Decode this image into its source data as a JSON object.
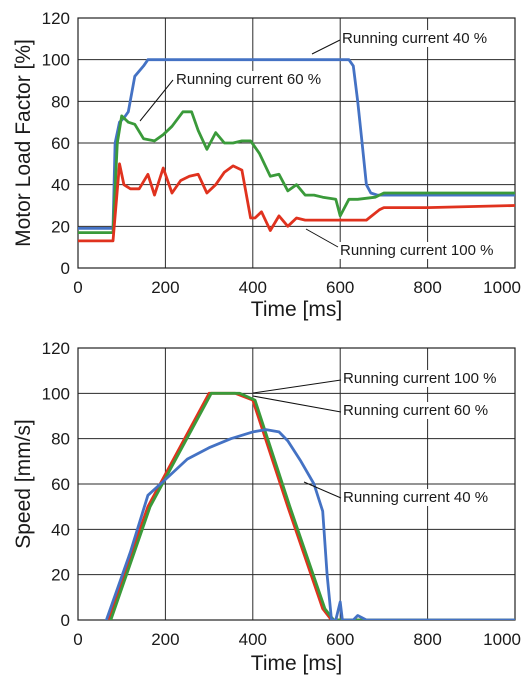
{
  "chart_data": [
    {
      "type": "line",
      "xlabel": "Time [ms]",
      "ylabel": "Motor Load Factor [%]",
      "xlim": [
        0,
        1000
      ],
      "ylim": [
        0,
        120
      ],
      "xticks": [
        "0",
        "200",
        "400",
        "600",
        "800",
        "1000"
      ],
      "yticks": [
        "0",
        "20",
        "40",
        "60",
        "80",
        "100",
        "120"
      ],
      "grid": true,
      "series": [
        {
          "name": "Running current 40 %",
          "color": "#4472c4",
          "x": [
            -25,
            80,
            85,
            95,
            105,
            115,
            130,
            150,
            160,
            170,
            180,
            200,
            300,
            400,
            600,
            620,
            630,
            640,
            650,
            660,
            670,
            685,
            700,
            800,
            1000
          ],
          "y": [
            19,
            19,
            60,
            70,
            72,
            75,
            92,
            97,
            100,
            100,
            100,
            100,
            100,
            100,
            100,
            100,
            97,
            80,
            60,
            40,
            36,
            35,
            35,
            35,
            35
          ]
        },
        {
          "name": "Running current 60 %",
          "color": "#3a9a3a",
          "x": [
            -25,
            80,
            90,
            100,
            115,
            130,
            150,
            175,
            195,
            215,
            240,
            260,
            275,
            295,
            315,
            335,
            355,
            375,
            395,
            415,
            440,
            460,
            480,
            500,
            520,
            540,
            560,
            590,
            600,
            620,
            640,
            680,
            700,
            800,
            1000
          ],
          "y": [
            17,
            17,
            60,
            73,
            70,
            69,
            62,
            61,
            64,
            68,
            75,
            75,
            66,
            57,
            65,
            60,
            60,
            61,
            61,
            55,
            44,
            45,
            37,
            40,
            35,
            35,
            34,
            33,
            25,
            33,
            33,
            34,
            36,
            36,
            36
          ]
        },
        {
          "name": "Running current 100 %",
          "color": "#e0321e",
          "x": [
            -25,
            80,
            95,
            105,
            120,
            140,
            160,
            175,
            195,
            215,
            235,
            255,
            275,
            295,
            315,
            335,
            355,
            375,
            395,
            405,
            420,
            440,
            460,
            480,
            500,
            520,
            550,
            600,
            660,
            690,
            700,
            800,
            1000
          ],
          "y": [
            13,
            13,
            50,
            40,
            38,
            38,
            45,
            35,
            48,
            36,
            42,
            44,
            45,
            36,
            40,
            46,
            49,
            47,
            24,
            24,
            27,
            18,
            25,
            20,
            24,
            23,
            23,
            23,
            23,
            28,
            29,
            29,
            30
          ]
        }
      ],
      "annotations": [
        "Running current 40 %",
        "Running current 60 %",
        "Running current 100 %"
      ]
    },
    {
      "type": "line",
      "xlabel": "Time [ms]",
      "ylabel": "Speed [mm/s]",
      "xlim": [
        0,
        1000
      ],
      "ylim": [
        0,
        120
      ],
      "xticks": [
        "0",
        "200",
        "400",
        "600",
        "800",
        "1000"
      ],
      "yticks": [
        "0",
        "20",
        "40",
        "60",
        "80",
        "100",
        "120"
      ],
      "grid": true,
      "series": [
        {
          "name": "Running current 100 %",
          "color": "#e0321e",
          "x": [
            70,
            160,
            300,
            360,
            400,
            480,
            560,
            580,
            1000
          ],
          "y": [
            0,
            50,
            100,
            100,
            97,
            50,
            5,
            0,
            0
          ]
        },
        {
          "name": "Running current 60 %",
          "color": "#3a9a3a",
          "x": [
            75,
            165,
            305,
            370,
            405,
            485,
            565,
            585,
            1000
          ],
          "y": [
            0,
            50,
            100,
            100,
            97,
            50,
            5,
            0,
            0
          ]
        },
        {
          "name": "Running current 40 %",
          "color": "#4472c4",
          "x": [
            65,
            120,
            160,
            200,
            250,
            300,
            350,
            400,
            430,
            460,
            480,
            510,
            540,
            560,
            570,
            580,
            590,
            600,
            605,
            615,
            630,
            640,
            660,
            1000
          ],
          "y": [
            0,
            30,
            55,
            62,
            71,
            76,
            80,
            83,
            84,
            83,
            79,
            70,
            60,
            48,
            20,
            0,
            0,
            8,
            0,
            0,
            0,
            2,
            0,
            0
          ]
        }
      ],
      "annotations": [
        "Running current 100 %",
        "Running current 60 %",
        "Running current 40 %"
      ]
    }
  ]
}
